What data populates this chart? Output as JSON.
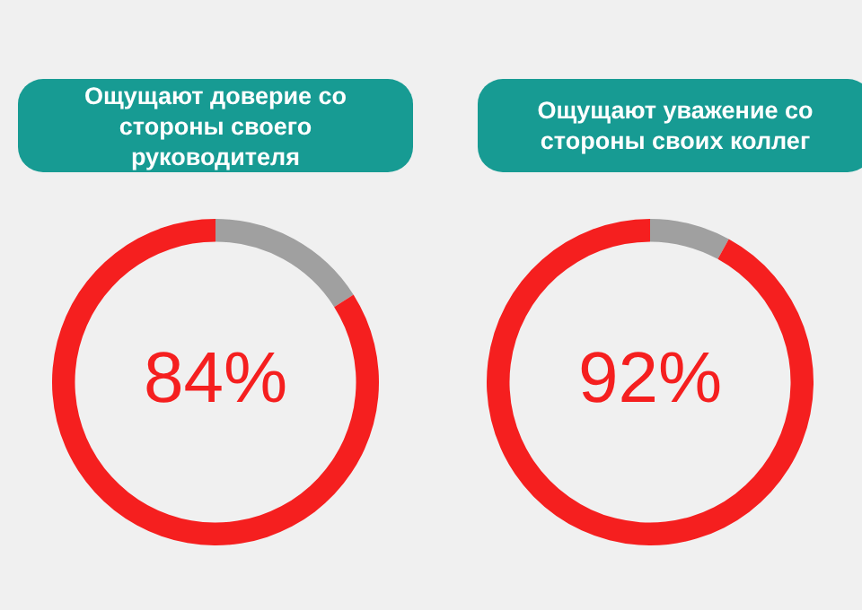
{
  "chart_data": [
    {
      "type": "donut",
      "title": "Ощущают доверие со стороны своего руководителя",
      "categories": [
        null,
        null
      ],
      "values": [
        16,
        84
      ],
      "colors": [
        "#a0a0a0",
        "#f51f1f"
      ],
      "value_labels": [
        null,
        "84%"
      ]
    },
    {
      "type": "donut",
      "title": "Ощущают уважение со стороны своих коллег",
      "categories": [
        null,
        null
      ],
      "values": [
        8,
        92
      ],
      "colors": [
        "#a0a0a0",
        "#f51f1f"
      ],
      "value_labels": [
        null,
        "92%"
      ]
    }
  ]
}
